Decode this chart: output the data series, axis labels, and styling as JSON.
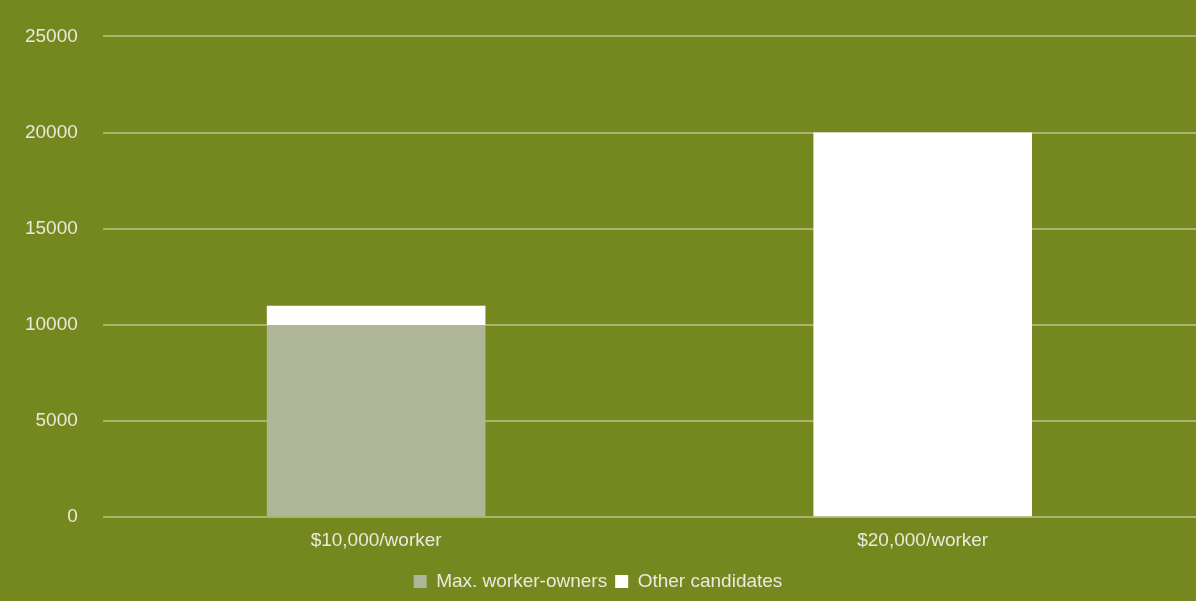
{
  "chart_data": {
    "type": "bar",
    "stacked": true,
    "categories": [
      "$10,000/worker",
      "$20,000/worker"
    ],
    "series": [
      {
        "name": "Max. worker-owners",
        "color": "#aeb697",
        "values": [
          10000,
          0
        ]
      },
      {
        "name": "Other candidates",
        "color": "#ffffff",
        "values": [
          1000,
          20000
        ]
      }
    ],
    "ylim": [
      0,
      25000
    ],
    "yticks": [
      0,
      5000,
      10000,
      15000,
      20000,
      25000
    ],
    "grid": "y",
    "legend": "bottom"
  }
}
